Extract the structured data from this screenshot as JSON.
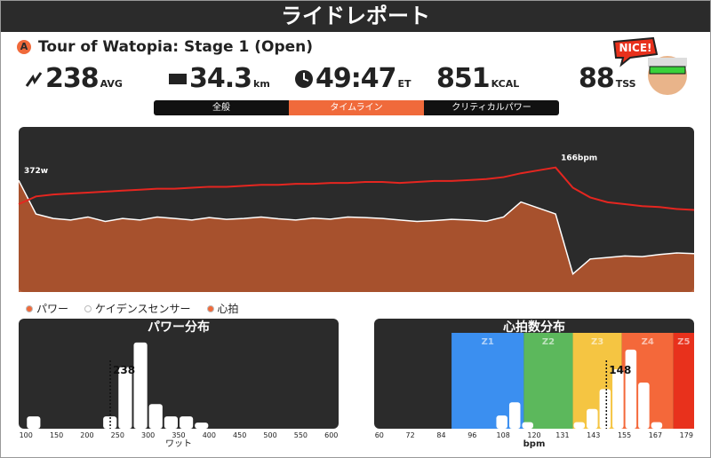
{
  "header": {
    "title": "ライドレポート"
  },
  "ride": {
    "badge": "A",
    "name": "Tour of Watopia: Stage 1 (Open)"
  },
  "stats": [
    {
      "value": 238,
      "unit": "AVG"
    },
    {
      "value": 34.3,
      "unit": "km"
    },
    {
      "value": "49:47",
      "unit": "ET"
    },
    {
      "value": 851,
      "unit": "KCAL"
    },
    {
      "value": 88,
      "unit": "TSS"
    }
  ],
  "badge": "NICE!",
  "tabs": [
    {
      "label": "全般",
      "active": false
    },
    {
      "label": "タイムライン",
      "active": true
    },
    {
      "label": "クリティカルパワー",
      "active": false
    }
  ],
  "legend": [
    {
      "label": "パワー",
      "color": "#f06a3b"
    },
    {
      "label": "ケイデンスセンサー",
      "color": "#ffffff"
    },
    {
      "label": "心拍",
      "color": "#f06a3b"
    }
  ],
  "chart_data": [
    {
      "type": "line",
      "series": [
        {
          "color": "#b5552e",
          "fill": true,
          "values": [
            372,
            260,
            245,
            240,
            250,
            235,
            245,
            240,
            250,
            245,
            240,
            248,
            242,
            245,
            250,
            244,
            240,
            246,
            243,
            250,
            248,
            245,
            240,
            235,
            238,
            242,
            240,
            236,
            250,
            300,
            280,
            260,
            60,
            110,
            115,
            120,
            118,
            125,
            130,
            128
          ],
          "value_labels": [
            "372w",
            null,
            null,
            null,
            null,
            null,
            null,
            null,
            null,
            null,
            null,
            null,
            null,
            null,
            null,
            null,
            null,
            null,
            null,
            null,
            null,
            null,
            null,
            null,
            null,
            null,
            null,
            null,
            null,
            null,
            null,
            null,
            null,
            null,
            null,
            null,
            null,
            null,
            null,
            null
          ]
        },
        {
          "color": "#e52620",
          "axis": "y2",
          "values": [
            128,
            136,
            138,
            139,
            140,
            141,
            142,
            143,
            144,
            144,
            145,
            146,
            146,
            147,
            148,
            148,
            149,
            149,
            150,
            150,
            151,
            151,
            150,
            151,
            152,
            152,
            153,
            154,
            156,
            160,
            163,
            166,
            145,
            135,
            130,
            128,
            126,
            125,
            123,
            122
          ],
          "value_labels": [
            null,
            null,
            null,
            null,
            null,
            null,
            null,
            null,
            null,
            null,
            null,
            null,
            null,
            null,
            null,
            null,
            null,
            null,
            null,
            null,
            null,
            null,
            null,
            null,
            null,
            null,
            null,
            null,
            null,
            null,
            null,
            "166bpm",
            null,
            null,
            null,
            null,
            null,
            null,
            null,
            null
          ]
        }
      ],
      "ylim": [
        0,
        550
      ],
      "y2lim": [
        37,
        208
      ]
    },
    {
      "type": "histogram",
      "title": "パワー分布",
      "x_label": "ワット",
      "color": "#ffffff",
      "bins": [
        100,
        125,
        150,
        175,
        200,
        225,
        250,
        275,
        300,
        325,
        350,
        375,
        400,
        425,
        450,
        475,
        500,
        525,
        550,
        575,
        600
      ],
      "counts": [
        2,
        0,
        0,
        0,
        0,
        2,
        10,
        14,
        4,
        2,
        2,
        1,
        0,
        0,
        0,
        0,
        0,
        0,
        0,
        0
      ],
      "xlim": [
        88,
        612
      ],
      "xticks": [
        100,
        150,
        200,
        250,
        300,
        350,
        400,
        450,
        500,
        550,
        600
      ],
      "ylim": [
        0,
        15
      ],
      "marker": 238
    },
    {
      "type": "histogram",
      "title": "心拍数分布",
      "x_label": "bpm",
      "color": "#ffffff",
      "bins": [
        100,
        105,
        110,
        115,
        120,
        125,
        130,
        135,
        140,
        145,
        150,
        155,
        160,
        165,
        170,
        175,
        180
      ],
      "counts": [
        0,
        2,
        4,
        1,
        0,
        0,
        0,
        1,
        3,
        6,
        9,
        12,
        7,
        1,
        0,
        0
      ],
      "xlim": [
        58,
        182
      ],
      "xticks": [
        60,
        72,
        84,
        96,
        108,
        120,
        131,
        143,
        155,
        167,
        179
      ],
      "ylim": [
        0,
        14
      ],
      "marker": 148,
      "zones": [
        {
          "name": "Z1",
          "color": "#3b8ff0",
          "range": [
            88,
            116
          ]
        },
        {
          "name": "Z2",
          "color": "#5cb85c",
          "range": [
            116,
            135
          ]
        },
        {
          "name": "Z3",
          "color": "#f5c542",
          "range": [
            135,
            154
          ]
        },
        {
          "name": "Z4",
          "color": "#f4683a",
          "range": [
            154,
            174
          ]
        },
        {
          "name": "Z5",
          "color": "#e8311c",
          "range": [
            174,
            182
          ]
        }
      ]
    }
  ]
}
